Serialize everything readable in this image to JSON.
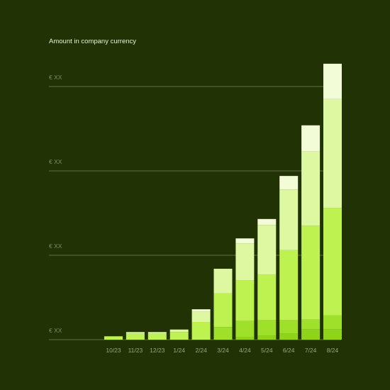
{
  "chart_data": {
    "type": "bar",
    "stacked": true,
    "title": "Amount in company currency",
    "xlabel": "",
    "ylabel": "",
    "ylim": [
      0,
      300
    ],
    "yticks": [
      {
        "value": 0,
        "label": "€ XX"
      },
      {
        "value": 100,
        "label": "€ XX"
      },
      {
        "value": 200,
        "label": "€ XX"
      },
      {
        "value": 300,
        "label": "€ XX"
      }
    ],
    "grid": true,
    "legend": "none",
    "categories": [
      "10/23",
      "11/23",
      "12/23",
      "1/24",
      "2/24",
      "3/24",
      "4/24",
      "5/24",
      "6/24",
      "7/24",
      "8/24"
    ],
    "series": [
      {
        "color": "#8fd41a",
        "values": [
          0,
          0,
          0,
          0,
          0,
          0,
          3,
          5,
          7,
          12,
          12
        ]
      },
      {
        "color": "#9fe02a",
        "values": [
          0,
          0,
          0,
          0,
          0,
          15,
          19,
          18,
          16,
          12,
          17
        ]
      },
      {
        "color": "#bdf250",
        "values": [
          4,
          7,
          7,
          9,
          21,
          40,
          48,
          54,
          83,
          111,
          127
        ]
      },
      {
        "color": "#ddf8a0",
        "values": [
          0,
          2,
          2,
          3,
          12,
          29,
          44,
          59,
          72,
          88,
          129
        ]
      },
      {
        "color": "#f2fcd6",
        "values": [
          0,
          0,
          0,
          0,
          3,
          0,
          6,
          7,
          16,
          31,
          42
        ]
      }
    ]
  }
}
